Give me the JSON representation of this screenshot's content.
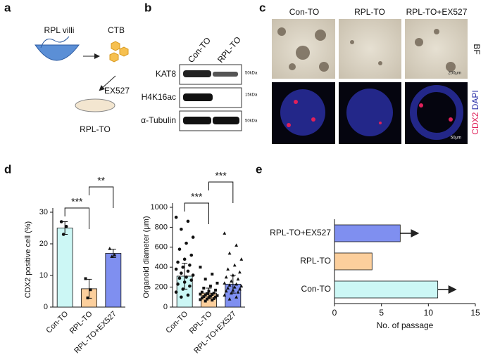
{
  "figure": {
    "panel_labels": [
      "a",
      "b",
      "c",
      "d",
      "e"
    ],
    "a": {
      "villi": "RPL villi",
      "cells": "CTB",
      "drug": "EX527",
      "result": "RPL-TO"
    },
    "b": {
      "lanes": [
        "Con-TO",
        "RPL-TO"
      ],
      "proteins": [
        "KAT8",
        "H4K16ac",
        "α-Tubulin"
      ],
      "sizes": [
        "50kDa",
        "15kDa",
        "50kDa"
      ]
    },
    "c": {
      "columns": [
        "Con-TO",
        "RPL-TO",
        "RPL-TO+EX527"
      ],
      "bf": "BF",
      "stain": [
        "CDX2",
        "DAPI"
      ],
      "scale_bars": [
        "200μm",
        "50μm"
      ]
    }
  },
  "chart_data": [
    {
      "type": "bar",
      "ylabel": "CDX2 positive cell (%)",
      "categories": [
        "Con-TO",
        "RPL-TO",
        "RPL-TO+EX527"
      ],
      "values": [
        25,
        5.8,
        17
      ],
      "errors": [
        2,
        3,
        1.3
      ],
      "points": [
        [
          27,
          25.5,
          23
        ],
        [
          9,
          5.5,
          2.9
        ],
        [
          18.5,
          16.5,
          16
        ]
      ],
      "colors": [
        "#ccf7f5",
        "#fccf9c",
        "#7f8ff0"
      ],
      "markers": [
        "circle",
        "square",
        "triangle"
      ],
      "ylim": [
        0,
        30
      ],
      "yticks": [
        0,
        10,
        20,
        30
      ],
      "annotations": [
        "***",
        "**"
      ]
    },
    {
      "type": "bar",
      "ylabel": "Organoid diameter (μm)",
      "categories": [
        "Con-TO",
        "RPL-TO",
        "RPL-TO+EX527"
      ],
      "values": [
        310,
        140,
        230
      ],
      "errors": [
        130,
        50,
        90
      ],
      "points": [
        [
          900,
          860,
          780,
          700,
          640,
          580,
          520,
          480,
          450,
          420,
          400,
          380,
          360,
          340,
          320,
          300,
          290,
          270,
          250,
          230,
          210,
          180,
          150,
          120,
          100
        ],
        [
          400,
          330,
          280,
          240,
          210,
          190,
          170,
          160,
          150,
          140,
          135,
          130,
          125,
          120,
          115,
          110,
          105,
          100,
          95,
          90,
          85,
          80,
          75,
          70,
          60
        ],
        [
          740,
          620,
          540,
          480,
          420,
          380,
          350,
          320,
          300,
          280,
          260,
          240,
          230,
          220,
          210,
          200,
          190,
          180,
          170,
          160,
          150,
          140,
          120,
          100,
          80
        ]
      ],
      "colors": [
        "#ccf7f5",
        "#fccf9c",
        "#7f8ff0"
      ],
      "markers": [
        "circle",
        "square",
        "triangle"
      ],
      "ylim": [
        0,
        1000
      ],
      "yticks": [
        0,
        200,
        400,
        600,
        800,
        1000
      ],
      "annotations": [
        "***",
        "***"
      ]
    },
    {
      "type": "hbar",
      "xlabel": "No. of passage",
      "categories": [
        "Con-TO",
        "RPL-TO",
        "RPL-TO+EX527"
      ],
      "values": [
        11,
        4,
        7
      ],
      "colors": [
        "#ccf7f5",
        "#fccf9c",
        "#7f8ff0"
      ],
      "xlim": [
        0,
        15
      ],
      "xticks": [
        0,
        5,
        10,
        15
      ]
    }
  ]
}
